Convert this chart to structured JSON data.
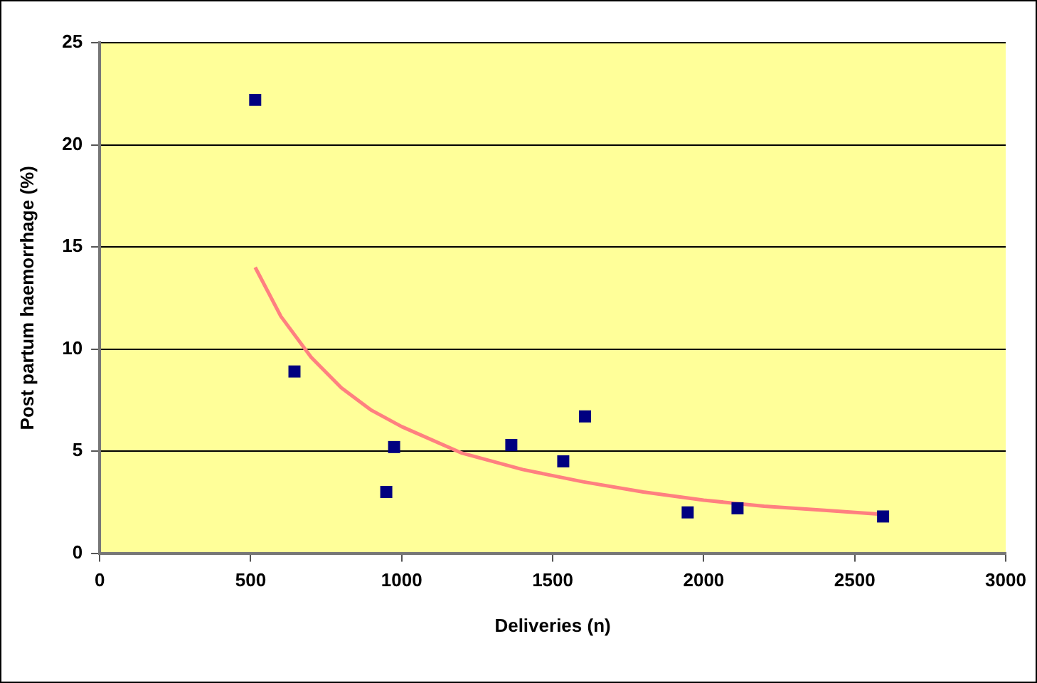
{
  "chart_data": {
    "type": "scatter",
    "xlabel": "Deliveries (n)",
    "ylabel": "Post partum haemorrhage (%)",
    "xlim": [
      0,
      3000
    ],
    "xticks": [
      0,
      500,
      1000,
      1500,
      2000,
      2500,
      3000
    ],
    "ylim": [
      0,
      25
    ],
    "yticks": [
      0,
      5,
      10,
      15,
      20,
      25
    ],
    "grid": "y",
    "legend": false,
    "series": [
      {
        "marker": "square",
        "color": "#000080",
        "x": [
          515,
          645,
          949,
          975,
          1363,
          1535,
          1607,
          1947,
          2112,
          2594
        ],
        "values": [
          22.2,
          8.9,
          3.0,
          5.2,
          5.3,
          4.5,
          6.7,
          2.0,
          2.2,
          1.8
        ]
      },
      {
        "type": "line",
        "marker": "none",
        "color": "#ff8080",
        "x": [
          515,
          600,
          700,
          800,
          900,
          1000,
          1200,
          1400,
          1600,
          1800,
          2000,
          2200,
          2400,
          2594
        ],
        "values": [
          14.0,
          11.6,
          9.6,
          8.1,
          7.0,
          6.2,
          4.9,
          4.1,
          3.5,
          3.0,
          2.6,
          2.3,
          2.1,
          1.9
        ]
      }
    ]
  }
}
